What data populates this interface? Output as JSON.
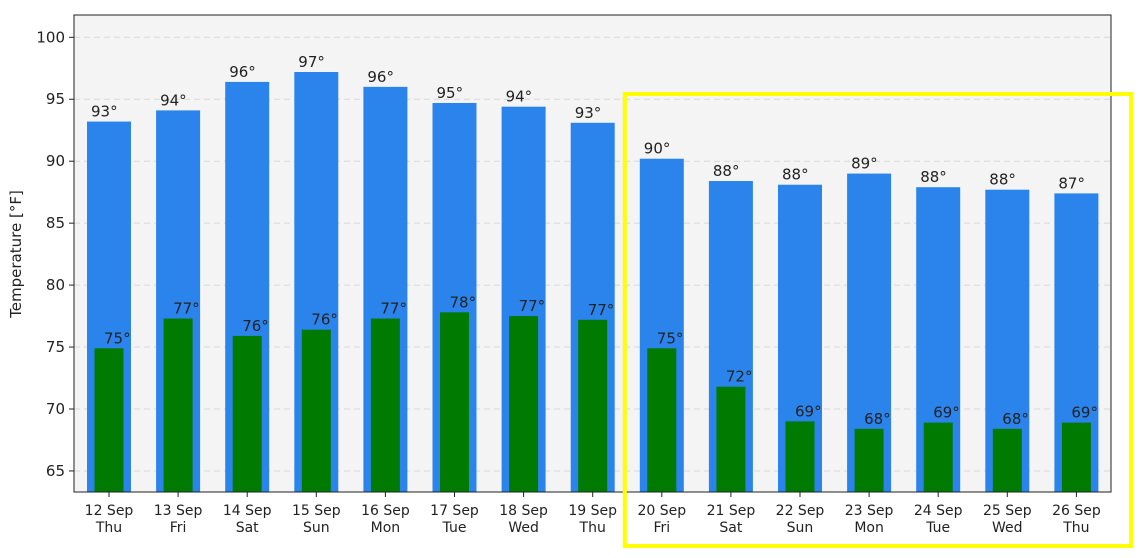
{
  "chart_data": {
    "type": "bar",
    "ylabel": "Temperature [°F]",
    "ylim": [
      63.3,
      101.8
    ],
    "yticks": [
      65,
      70,
      75,
      80,
      85,
      90,
      95,
      100
    ],
    "grid": "horizontal dashed",
    "degree_suffix": "°",
    "categories": [
      {
        "date": "12 Sep",
        "day": "Thu"
      },
      {
        "date": "13 Sep",
        "day": "Fri"
      },
      {
        "date": "14 Sep",
        "day": "Sat"
      },
      {
        "date": "15 Sep",
        "day": "Sun"
      },
      {
        "date": "16 Sep",
        "day": "Mon"
      },
      {
        "date": "17 Sep",
        "day": "Tue"
      },
      {
        "date": "18 Sep",
        "day": "Wed"
      },
      {
        "date": "19 Sep",
        "day": "Thu"
      },
      {
        "date": "20 Sep",
        "day": "Fri"
      },
      {
        "date": "21 Sep",
        "day": "Sat"
      },
      {
        "date": "22 Sep",
        "day": "Sun"
      },
      {
        "date": "23 Sep",
        "day": "Mon"
      },
      {
        "date": "24 Sep",
        "day": "Tue"
      },
      {
        "date": "25 Sep",
        "day": "Wed"
      },
      {
        "date": "26 Sep",
        "day": "Thu"
      }
    ],
    "series": [
      {
        "color": "#2b84ec",
        "values": [
          93.2,
          94.1,
          96.4,
          97.2,
          96.0,
          94.7,
          94.4,
          93.1,
          90.2,
          88.4,
          88.1,
          89.0,
          87.9,
          87.7,
          87.4
        ],
        "labels": [
          "93",
          "94",
          "96",
          "97",
          "96",
          "95",
          "94",
          "93",
          "90",
          "88",
          "88",
          "89",
          "88",
          "88",
          "87"
        ]
      },
      {
        "color": "#007a00",
        "values": [
          74.9,
          77.3,
          75.9,
          76.4,
          77.3,
          77.8,
          77.5,
          77.2,
          74.9,
          71.8,
          69.0,
          68.4,
          68.9,
          68.4,
          68.9
        ],
        "labels": [
          "75",
          "77",
          "76",
          "76",
          "77",
          "78",
          "77",
          "77",
          "75",
          "72",
          "69",
          "68",
          "69",
          "68",
          "69"
        ]
      }
    ],
    "highlight": {
      "from_index": 8,
      "to_index": 14,
      "color": "#ffff00"
    }
  }
}
